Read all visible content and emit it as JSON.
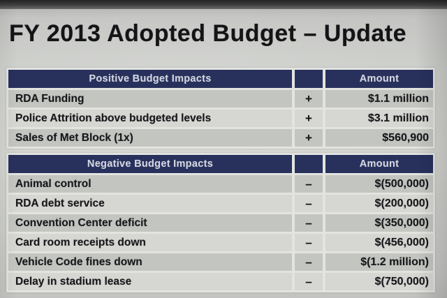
{
  "slide": {
    "title": "FY 2013 Adopted Budget – Update"
  },
  "positive_table": {
    "header_label": "Positive Budget Impacts",
    "amount_header": "Amount",
    "rows": [
      {
        "label": "RDA Funding",
        "sign": "+",
        "amount": "$1.1 million"
      },
      {
        "label": "Police Attrition above budgeted levels",
        "sign": "+",
        "amount": "$3.1 million"
      },
      {
        "label": "Sales of Met Block (1x)",
        "sign": "+",
        "amount": "$560,900"
      }
    ]
  },
  "negative_table": {
    "header_label": "Negative Budget Impacts",
    "amount_header": "Amount",
    "rows": [
      {
        "label": "Animal control",
        "sign": "–",
        "amount": "$(500,000)"
      },
      {
        "label": "RDA debt service",
        "sign": "–",
        "amount": "$(200,000)"
      },
      {
        "label": "Convention Center deficit",
        "sign": "–",
        "amount": "$(350,000)"
      },
      {
        "label": "Card room receipts down",
        "sign": "–",
        "amount": "$(456,000)"
      },
      {
        "label": "Vehicle Code fines down",
        "sign": "–",
        "amount": "$(1.2 million)"
      },
      {
        "label": "Delay in stadium lease",
        "sign": "–",
        "amount": "$(750,000)"
      }
    ]
  },
  "colors": {
    "header_bg": "#28315c",
    "header_text": "#d4d7e1",
    "row_dark": "#c3c5c1",
    "row_light": "#d6d7d3",
    "table_frame": "#e3e4e0",
    "ink": "#17171a"
  }
}
